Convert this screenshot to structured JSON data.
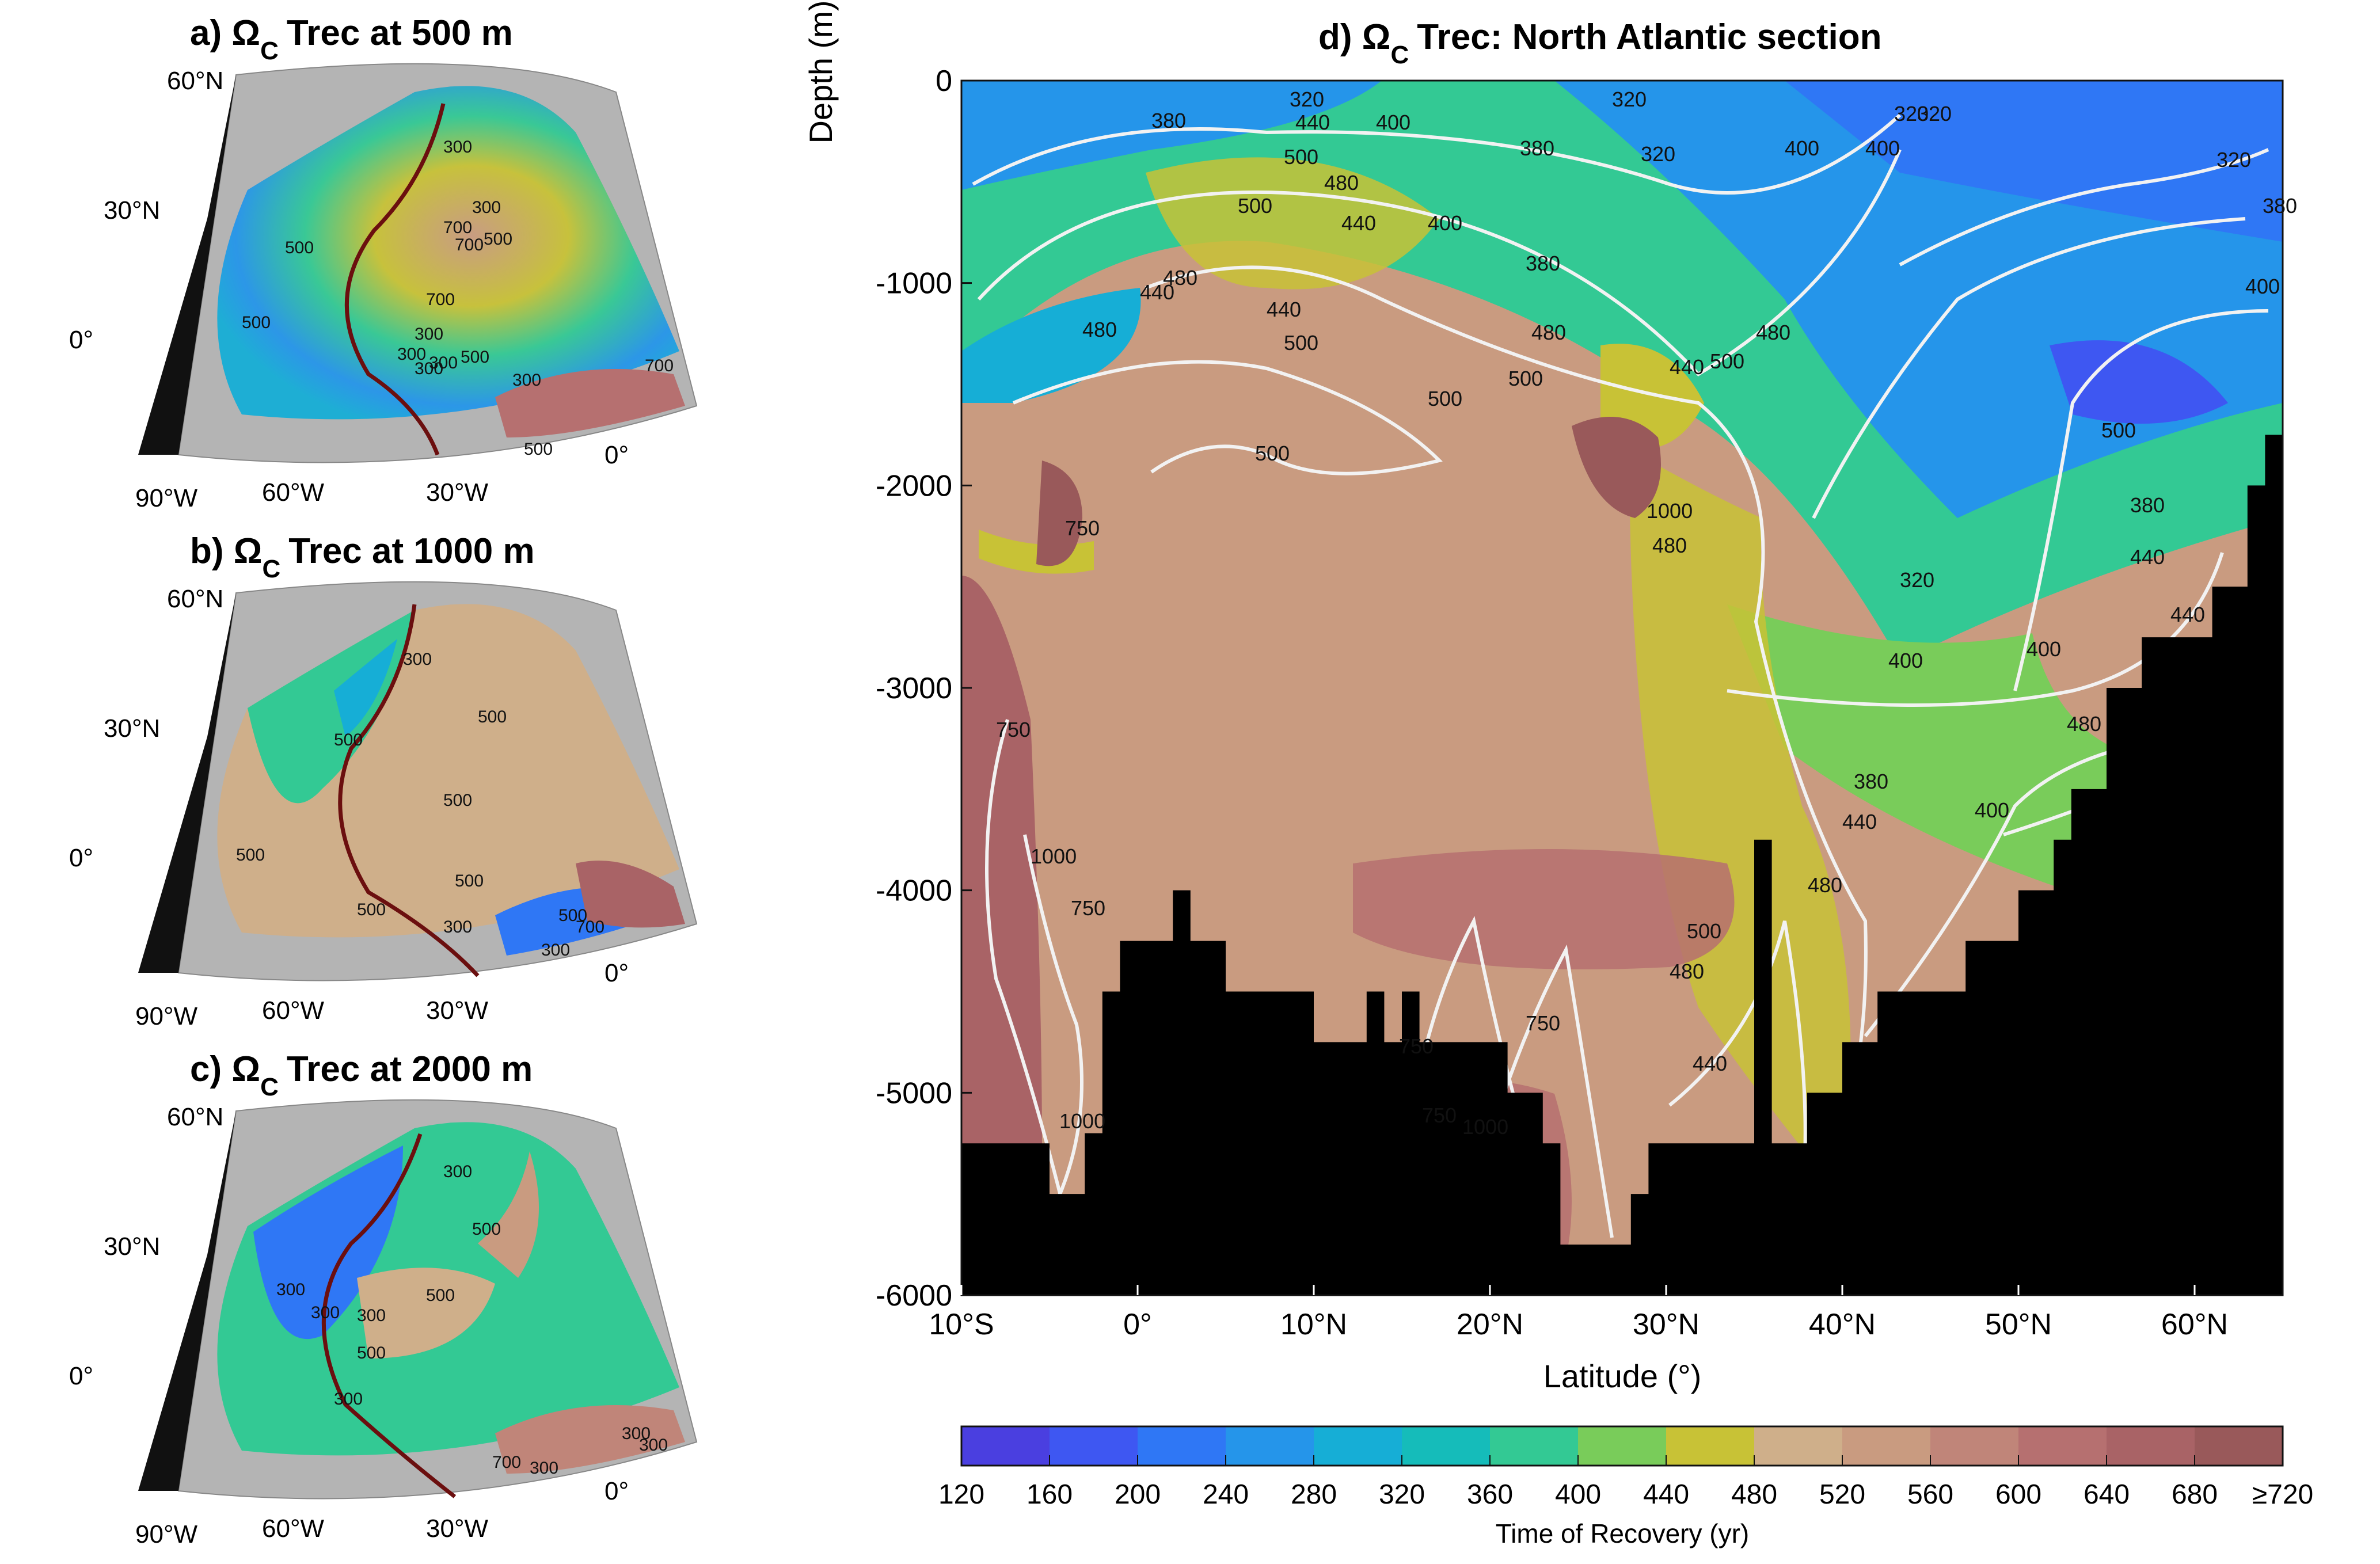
{
  "titles": {
    "a": "a) Ω",
    "b": "b) Ω",
    "c": "c) Ω",
    "d": "d) Ω",
    "sub": "C",
    "a_rest": "Trec at 500 m",
    "b_rest": "Trec at 1000 m",
    "c_rest": "Trec at 2000 m",
    "d_rest": "Trec: North Atlantic section"
  },
  "map_labels": {
    "lat60": "60°N",
    "lat30": "30°N",
    "lat0": "0°",
    "lon90": "90°W",
    "lon60": "60°W",
    "lon30": "30°W",
    "lon0": "0°"
  },
  "map_contours": {
    "a": [
      "300",
      "300",
      "700",
      "500",
      "500",
      "700",
      "700",
      "500",
      "300",
      "300",
      "300",
      "300",
      "500",
      "300",
      "700",
      "500"
    ],
    "b": [
      "300",
      "500",
      "500",
      "500",
      "500",
      "500",
      "500",
      "300",
      "500",
      "700",
      "300"
    ],
    "c": [
      "300",
      "500",
      "300",
      "300",
      "300",
      "500",
      "500",
      "300",
      "700",
      "300",
      "300",
      "300"
    ]
  },
  "chart_data": {
    "type": "heatmap",
    "title": "d) ΩC Trec: North Atlantic section",
    "xlabel": "Latitude (°)",
    "ylabel": "Depth (m)",
    "xlim": [
      -10,
      65
    ],
    "ylim": [
      -6000,
      0
    ],
    "x_ticks": [
      -10,
      0,
      10,
      20,
      30,
      40,
      50,
      60
    ],
    "x_tick_labels": [
      "10°S",
      "0°",
      "10°N",
      "20°N",
      "30°N",
      "40°N",
      "50°N",
      "60°N"
    ],
    "y_ticks": [
      0,
      -1000,
      -2000,
      -3000,
      -4000,
      -5000,
      -6000
    ],
    "y_tick_labels": [
      "0",
      "-1000",
      "-2000",
      "-3000",
      "-4000",
      "-5000",
      "-6000"
    ],
    "grid": false,
    "colorbar": {
      "label": "Time of Recovery (yr)",
      "ticks": [
        "120",
        "160",
        "200",
        "240",
        "280",
        "320",
        "360",
        "400",
        "440",
        "480",
        "520",
        "560",
        "600",
        "640",
        "680",
        "≥720"
      ],
      "colors": [
        "#4a3fe0",
        "#3e57f2",
        "#2f77f5",
        "#2595ea",
        "#16aed6",
        "#15bcba",
        "#33c994",
        "#79cc5a",
        "#c8c236",
        "#cfaf8a",
        "#c99b80",
        "#c08579",
        "#b67070",
        "#a96366",
        "#99595a"
      ]
    },
    "contour_labels": [
      "320",
      "380",
      "440",
      "400",
      "500",
      "480",
      "320",
      "380",
      "400",
      "320",
      "400",
      "500",
      "440",
      "400",
      "320",
      "380",
      "320",
      "320",
      "380",
      "440",
      "480",
      "480",
      "500",
      "440",
      "480",
      "500",
      "440",
      "480",
      "500",
      "1000",
      "480",
      "500",
      "750",
      "500",
      "750",
      "1000",
      "750",
      "1000",
      "750",
      "750",
      "1000",
      "750",
      "500",
      "480",
      "440",
      "480",
      "440",
      "400",
      "320",
      "380",
      "400",
      "440",
      "380",
      "400",
      "500",
      "480",
      "440",
      "400"
    ],
    "bathymetry": [
      [
        -10,
        5250
      ],
      [
        -5,
        5500
      ],
      [
        -3,
        5200
      ],
      [
        -2,
        4500
      ],
      [
        -1,
        4250
      ],
      [
        2,
        4000
      ],
      [
        3,
        4250
      ],
      [
        5,
        4500
      ],
      [
        8,
        4500
      ],
      [
        10,
        4750
      ],
      [
        12,
        4750
      ],
      [
        13,
        4500
      ],
      [
        14,
        4750
      ],
      [
        15,
        4500
      ],
      [
        16,
        4750
      ],
      [
        18,
        4750
      ],
      [
        20,
        4750
      ],
      [
        21,
        5000
      ],
      [
        23,
        5250
      ],
      [
        24,
        5750
      ],
      [
        26,
        5750
      ],
      [
        28,
        5500
      ],
      [
        29,
        5250
      ],
      [
        33,
        5250
      ],
      [
        35,
        3750
      ],
      [
        36,
        5250
      ],
      [
        38,
        5000
      ],
      [
        40,
        4750
      ],
      [
        42,
        4500
      ],
      [
        47,
        4250
      ],
      [
        50,
        4000
      ],
      [
        52,
        3750
      ],
      [
        53,
        3500
      ],
      [
        55,
        3000
      ],
      [
        57,
        2750
      ],
      [
        61,
        2500
      ],
      [
        63,
        2000
      ],
      [
        64,
        1750
      ],
      [
        65,
        1750
      ]
    ]
  }
}
